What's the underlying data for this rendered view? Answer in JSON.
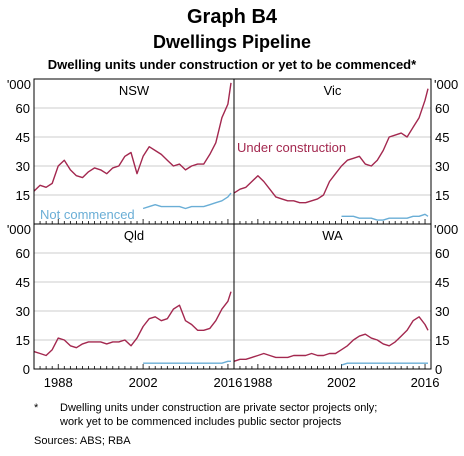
{
  "header": {
    "title": "Graph B4",
    "subtitle": "Dwellings Pipeline",
    "description": "Dwelling units under construction or yet to be commenced*"
  },
  "units": "'000",
  "colors": {
    "under_construction": "#a3284f",
    "not_commenced": "#6aaed6",
    "frame": "#000000",
    "grid": "#bdbdbd"
  },
  "annotations": {
    "under_construction": "Under construction",
    "not_commenced": "Not commenced"
  },
  "footnote": {
    "marker": "*",
    "line1": "Dwelling units under construction are private sector projects only;",
    "line2": "work yet to be commenced includes public sector projects"
  },
  "sources": "Sources: ABS; RBA",
  "chart_data": [
    {
      "type": "line",
      "title": "NSW",
      "ylim": [
        0,
        75
      ],
      "yticks": [
        15,
        30,
        45,
        60
      ],
      "ylabel": "'000",
      "xlim": [
        1984,
        2017
      ],
      "xticks": [
        1988,
        2002,
        2016
      ],
      "series": [
        {
          "name": "Under construction",
          "x": [
            1984,
            1985,
            1986,
            1987,
            1988,
            1989,
            1990,
            1991,
            1992,
            1993,
            1994,
            1995,
            1996,
            1997,
            1998,
            1999,
            2000,
            2001,
            2002,
            2003,
            2004,
            2005,
            2006,
            2007,
            2008,
            2009,
            2010,
            2011,
            2012,
            2013,
            2014,
            2015,
            2016,
            2016.5
          ],
          "y": [
            17,
            20,
            19,
            21,
            30,
            33,
            28,
            25,
            24,
            27,
            29,
            28,
            26,
            29,
            30,
            35,
            37,
            26,
            35,
            40,
            38,
            36,
            33,
            30,
            31,
            28,
            30,
            31,
            31,
            36,
            42,
            55,
            62,
            73
          ]
        },
        {
          "name": "Not commenced",
          "x": [
            2002,
            2003,
            2004,
            2005,
            2006,
            2007,
            2008,
            2009,
            2010,
            2011,
            2012,
            2013,
            2014,
            2015,
            2016,
            2016.5
          ],
          "y": [
            8,
            9,
            10,
            9,
            9,
            9,
            9,
            8,
            9,
            9,
            9,
            10,
            11,
            12,
            14,
            16
          ]
        }
      ]
    },
    {
      "type": "line",
      "title": "Vic",
      "ylim": [
        0,
        75
      ],
      "yticks": [
        15,
        30,
        45,
        60
      ],
      "ylabel": "'000",
      "xlim": [
        1984,
        2017
      ],
      "xticks": [
        1988,
        2002,
        2016
      ],
      "series": [
        {
          "name": "Under construction",
          "x": [
            1984,
            1985,
            1986,
            1987,
            1988,
            1989,
            1990,
            1991,
            1992,
            1993,
            1994,
            1995,
            1996,
            1997,
            1998,
            1999,
            2000,
            2001,
            2002,
            2003,
            2004,
            2005,
            2006,
            2007,
            2008,
            2009,
            2010,
            2011,
            2012,
            2013,
            2014,
            2015,
            2016,
            2016.5
          ],
          "y": [
            16,
            18,
            19,
            22,
            25,
            22,
            18,
            14,
            13,
            12,
            12,
            11,
            11,
            12,
            13,
            15,
            22,
            26,
            30,
            33,
            34,
            35,
            31,
            30,
            33,
            38,
            45,
            46,
            47,
            45,
            50,
            55,
            64,
            70
          ]
        },
        {
          "name": "Not commenced",
          "x": [
            2002,
            2003,
            2004,
            2005,
            2006,
            2007,
            2008,
            2009,
            2010,
            2011,
            2012,
            2013,
            2014,
            2015,
            2016,
            2016.5
          ],
          "y": [
            4,
            4,
            4,
            3,
            3,
            3,
            2,
            2,
            3,
            3,
            3,
            3,
            4,
            4,
            5,
            4
          ]
        }
      ]
    },
    {
      "type": "line",
      "title": "Qld",
      "ylim": [
        0,
        75
      ],
      "yticks": [
        15,
        30,
        45,
        60
      ],
      "ylabel": "'000",
      "xlim": [
        1984,
        2017
      ],
      "xticks": [
        1988,
        2002,
        2016
      ],
      "series": [
        {
          "name": "Under construction",
          "x": [
            1984,
            1985,
            1986,
            1987,
            1988,
            1989,
            1990,
            1991,
            1992,
            1993,
            1994,
            1995,
            1996,
            1997,
            1998,
            1999,
            2000,
            2001,
            2002,
            2003,
            2004,
            2005,
            2006,
            2007,
            2008,
            2009,
            2010,
            2011,
            2012,
            2013,
            2014,
            2015,
            2016,
            2016.5
          ],
          "y": [
            9,
            8,
            7,
            10,
            16,
            15,
            12,
            11,
            13,
            14,
            14,
            14,
            13,
            14,
            14,
            15,
            12,
            16,
            22,
            26,
            27,
            25,
            26,
            31,
            33,
            25,
            23,
            20,
            20,
            21,
            25,
            31,
            35,
            40
          ]
        },
        {
          "name": "Not commenced",
          "x": [
            2002,
            2003,
            2004,
            2005,
            2006,
            2007,
            2008,
            2009,
            2010,
            2011,
            2012,
            2013,
            2014,
            2015,
            2016,
            2016.5
          ],
          "y": [
            3,
            3,
            3,
            3,
            3,
            3,
            3,
            3,
            3,
            3,
            3,
            3,
            3,
            3,
            4,
            4
          ]
        }
      ]
    },
    {
      "type": "line",
      "title": "WA",
      "ylim": [
        0,
        75
      ],
      "yticks": [
        15,
        30,
        45,
        60
      ],
      "ylabel": "'000",
      "xlim": [
        1984,
        2017
      ],
      "xticks": [
        1988,
        2002,
        2016
      ],
      "series": [
        {
          "name": "Under construction",
          "x": [
            1984,
            1985,
            1986,
            1987,
            1988,
            1989,
            1990,
            1991,
            1992,
            1993,
            1994,
            1995,
            1996,
            1997,
            1998,
            1999,
            2000,
            2001,
            2002,
            2003,
            2004,
            2005,
            2006,
            2007,
            2008,
            2009,
            2010,
            2011,
            2012,
            2013,
            2014,
            2015,
            2016,
            2016.5
          ],
          "y": [
            4,
            5,
            5,
            6,
            7,
            8,
            7,
            6,
            6,
            6,
            7,
            7,
            7,
            8,
            7,
            7,
            8,
            8,
            10,
            12,
            15,
            17,
            18,
            16,
            15,
            13,
            12,
            14,
            17,
            20,
            25,
            27,
            23,
            20
          ]
        },
        {
          "name": "Not commenced",
          "x": [
            2002,
            2003,
            2004,
            2005,
            2006,
            2007,
            2008,
            2009,
            2010,
            2011,
            2012,
            2013,
            2014,
            2015,
            2016,
            2016.5
          ],
          "y": [
            2,
            3,
            3,
            3,
            3,
            3,
            3,
            3,
            3,
            3,
            3,
            3,
            3,
            3,
            3,
            3
          ]
        }
      ]
    }
  ]
}
